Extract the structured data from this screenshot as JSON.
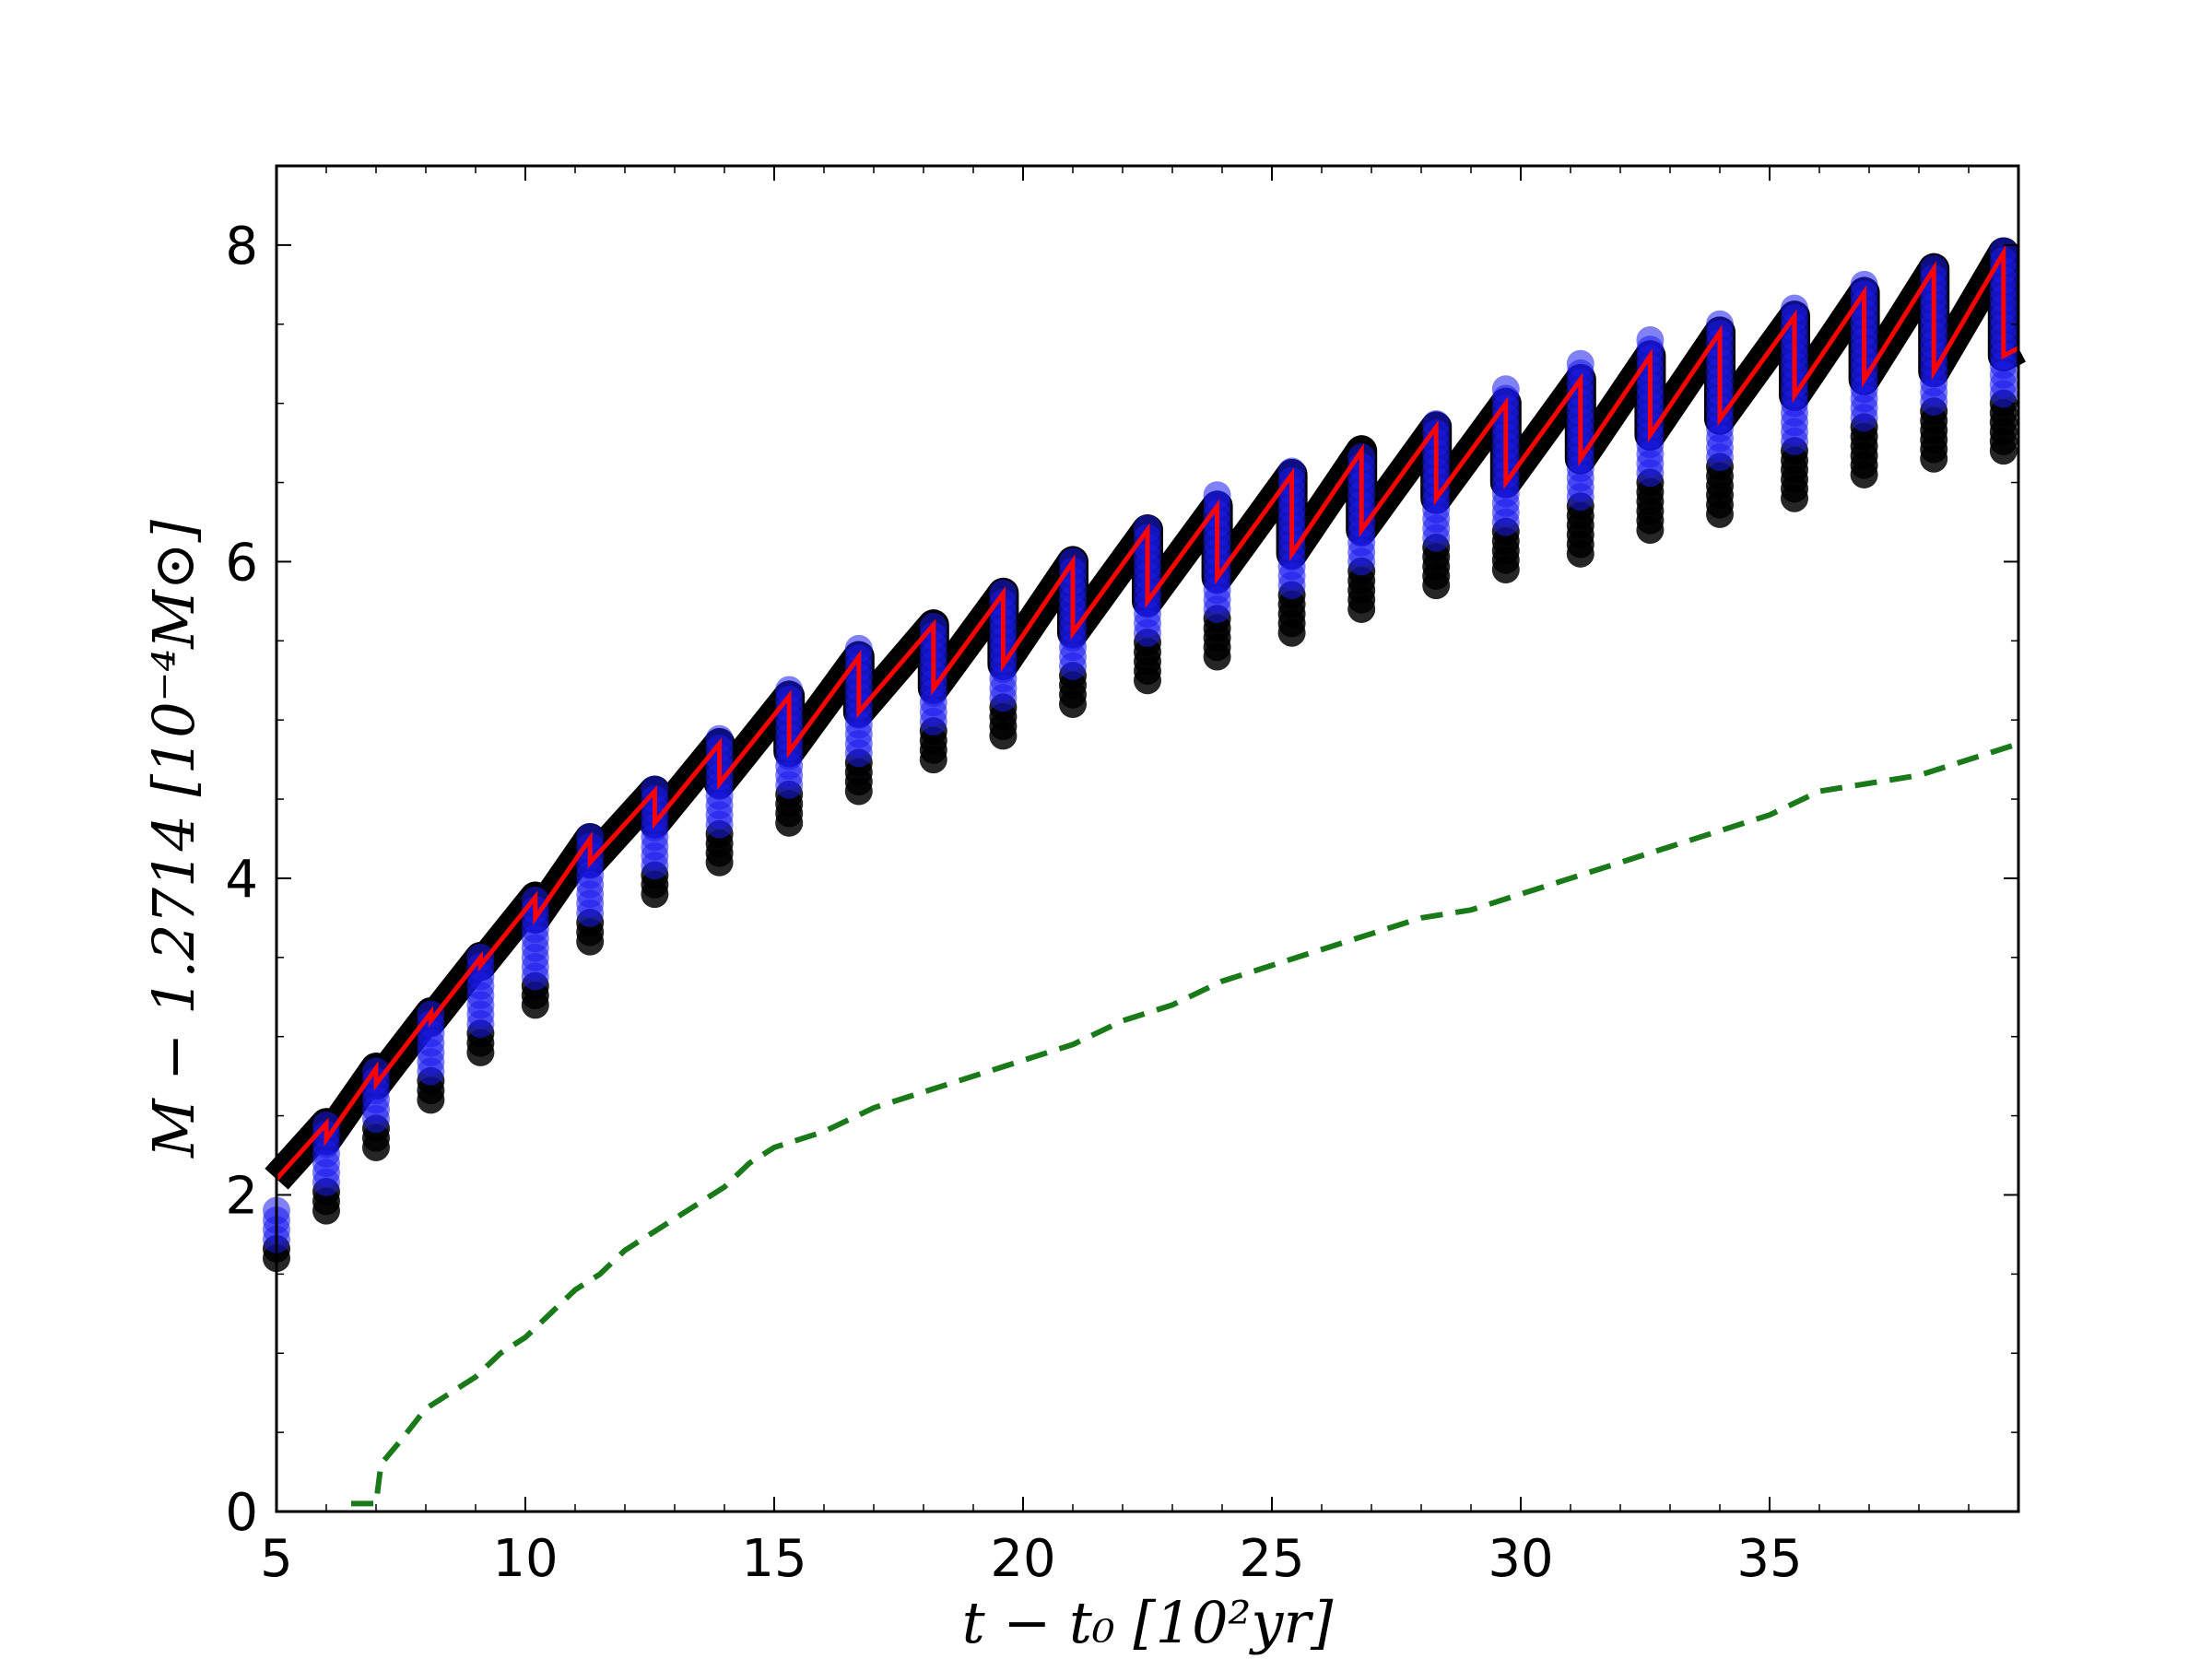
{
  "chart_data": {
    "type": "scatter",
    "title": "",
    "xlabel": "t − t₀ [10²yr]",
    "ylabel": "M − 1.2714 [10⁻⁴M⊙]",
    "xlim": [
      5,
      40
    ],
    "ylim": [
      0,
      8.5
    ],
    "xticks": [
      5,
      10,
      15,
      20,
      25,
      30,
      35
    ],
    "yticks": [
      0,
      2,
      4,
      6,
      8
    ],
    "grid": false,
    "legend": null,
    "colors": {
      "scatter_fill": "#1a1aee",
      "scatter_dark": "#000000",
      "upper_band": "#000000",
      "mean_line": "#ff0000",
      "dashed_line": "#1a7a1a"
    },
    "series": [
      {
        "type": "scatter",
        "points_per_column": "range",
        "x": [
          5.0,
          6.0,
          7.0,
          8.1,
          9.1,
          10.2,
          11.3,
          12.6,
          13.9,
          15.3,
          16.7,
          18.2,
          19.6,
          21.0,
          22.5,
          23.9,
          25.4,
          26.8,
          28.3,
          29.7,
          31.2,
          32.6,
          34.0,
          35.5,
          36.9,
          38.3,
          39.7
        ],
        "ymin": [
          1.6,
          1.9,
          2.3,
          2.6,
          2.9,
          3.2,
          3.6,
          3.9,
          4.1,
          4.35,
          4.55,
          4.75,
          4.9,
          5.1,
          5.25,
          5.4,
          5.55,
          5.7,
          5.85,
          5.95,
          6.05,
          6.2,
          6.3,
          6.4,
          6.55,
          6.65,
          6.7
        ],
        "ymax": [
          1.95,
          2.45,
          2.8,
          3.15,
          3.5,
          3.9,
          4.3,
          4.6,
          4.9,
          5.2,
          5.45,
          5.6,
          5.85,
          6.05,
          6.25,
          6.45,
          6.6,
          6.7,
          6.9,
          7.1,
          7.25,
          7.4,
          7.5,
          7.6,
          7.75,
          7.85,
          7.98
        ]
      },
      {
        "type": "line",
        "style": "sawtooth",
        "x": [
          5.0,
          6.0,
          6.0,
          7.0,
          7.0,
          8.1,
          8.1,
          9.1,
          9.1,
          10.2,
          10.2,
          11.3,
          11.3,
          12.6,
          12.6,
          13.9,
          13.9,
          15.3,
          15.3,
          16.7,
          16.7,
          18.2,
          18.2,
          19.6,
          19.6,
          21.0,
          21.0,
          22.5,
          22.5,
          23.9,
          23.9,
          25.4,
          25.4,
          26.8,
          26.8,
          28.3,
          28.3,
          29.7,
          29.7,
          31.2,
          31.2,
          32.6,
          32.6,
          34.0,
          34.0,
          35.5,
          35.5,
          36.9,
          36.9,
          38.3,
          38.3,
          39.7,
          39.7,
          40.0
        ],
        "y": [
          2.1,
          2.45,
          2.35,
          2.8,
          2.7,
          3.15,
          3.1,
          3.5,
          3.45,
          3.88,
          3.75,
          4.25,
          4.1,
          4.55,
          4.35,
          4.85,
          4.6,
          5.15,
          4.8,
          5.4,
          5.05,
          5.6,
          5.2,
          5.8,
          5.35,
          6.0,
          5.55,
          6.2,
          5.75,
          6.35,
          5.9,
          6.55,
          6.05,
          6.7,
          6.2,
          6.85,
          6.4,
          7.0,
          6.5,
          7.15,
          6.65,
          7.3,
          6.8,
          7.45,
          6.9,
          7.55,
          7.05,
          7.7,
          7.15,
          7.85,
          7.2,
          7.95,
          7.3,
          7.35
        ]
      },
      {
        "type": "line",
        "style": "dashed",
        "x": [
          6.5,
          7.0,
          7.1,
          7.5,
          8.0,
          8.5,
          9.0,
          9.5,
          10.0,
          10.5,
          11.0,
          11.5,
          12.0,
          12.5,
          13.0,
          13.5,
          14.0,
          14.5,
          15.0,
          16.0,
          17.0,
          18.0,
          19.0,
          20.0,
          21.0,
          22.0,
          23.0,
          24.0,
          25.0,
          26.0,
          27.0,
          28.0,
          29.0,
          30.0,
          31.0,
          32.0,
          33.0,
          34.0,
          35.0,
          36.0,
          37.0,
          38.0,
          39.0,
          40.0
        ],
        "y": [
          0.05,
          0.05,
          0.3,
          0.45,
          0.65,
          0.75,
          0.85,
          1.0,
          1.1,
          1.25,
          1.4,
          1.5,
          1.65,
          1.75,
          1.85,
          1.95,
          2.05,
          2.2,
          2.3,
          2.4,
          2.55,
          2.65,
          2.75,
          2.85,
          2.95,
          3.1,
          3.2,
          3.35,
          3.45,
          3.55,
          3.65,
          3.75,
          3.8,
          3.9,
          4.0,
          4.1,
          4.2,
          4.3,
          4.4,
          4.55,
          4.6,
          4.65,
          4.75,
          4.85
        ]
      }
    ]
  }
}
